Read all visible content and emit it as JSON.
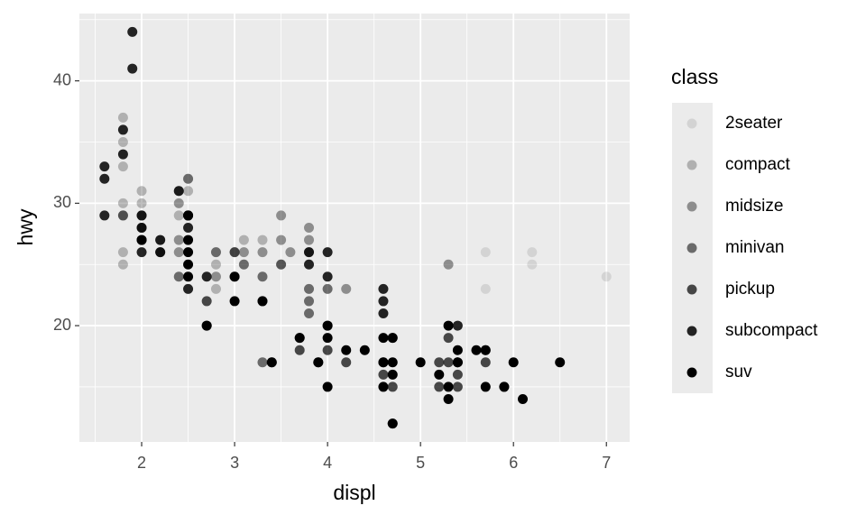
{
  "chart_data": {
    "type": "scatter",
    "x_label": "displ",
    "y_label": "hwy",
    "legend_title": "class",
    "legend_position": "right",
    "grid": true,
    "xlim": [
      1.33,
      7.25
    ],
    "ylim": [
      10.5,
      45.5
    ],
    "xticks": [
      2,
      3,
      4,
      5,
      6,
      7
    ],
    "yticks": [
      20,
      30,
      40
    ],
    "series": [
      {
        "name": "2seater",
        "color": "#0000001A",
        "x": [
          5.7,
          5.7,
          6.2,
          6.2,
          7.0
        ],
        "values": [
          26,
          23,
          26,
          25,
          24
        ]
      },
      {
        "name": "compact",
        "color": "#00000040",
        "x": [
          1.8,
          1.8,
          2.0,
          2.0,
          2.8,
          3.1,
          1.8,
          1.8,
          2.0,
          2.0,
          2.8,
          3.1,
          2.0,
          2.5,
          2.2,
          2.2,
          2.4,
          2.4,
          3.0,
          3.3,
          1.8,
          1.8,
          1.8,
          1.8,
          2.0,
          2.8,
          2.5,
          2.5
        ],
        "values": [
          29,
          29,
          31,
          30,
          26,
          27,
          26,
          25,
          28,
          27,
          25,
          25,
          29,
          29,
          26,
          27,
          31,
          29,
          26,
          27,
          30,
          33,
          35,
          37,
          29,
          23,
          32,
          31
        ]
      },
      {
        "name": "midsize",
        "color": "#00000066",
        "x": [
          2.8,
          3.1,
          4.2,
          2.4,
          2.4,
          3.1,
          3.5,
          3.6,
          2.4,
          2.5,
          3.3,
          2.5,
          3.5,
          3.5,
          3.0,
          3.5,
          3.8,
          3.8,
          3.8,
          5.3,
          2.2,
          3.0,
          1.8,
          2.0,
          2.8
        ],
        "values": [
          24,
          25,
          23,
          27,
          30,
          26,
          29,
          26,
          26,
          29,
          26,
          32,
          27,
          25,
          26,
          25,
          27,
          26,
          28,
          25,
          26,
          26,
          29,
          28,
          26
        ]
      },
      {
        "name": "minivan",
        "color": "#0000008C",
        "x": [
          2.4,
          3.0,
          3.3,
          3.3,
          3.3,
          3.8,
          3.8,
          3.8,
          4.0
        ],
        "values": [
          24,
          24,
          22,
          24,
          17,
          22,
          21,
          23,
          23
        ]
      },
      {
        "name": "pickup",
        "color": "#000000B3",
        "x": [
          3.7,
          3.7,
          3.9,
          4.7,
          4.7,
          5.2,
          5.2,
          4.7,
          5.7,
          5.9,
          4.2,
          4.6,
          4.6,
          5.4,
          5.4,
          2.7,
          2.7,
          3.4,
          4.0,
          4.0,
          5.3,
          5.3,
          5.7
        ],
        "values": [
          19,
          18,
          17,
          19,
          12,
          17,
          15,
          15,
          17,
          15,
          17,
          17,
          16,
          15,
          16,
          20,
          22,
          17,
          18,
          20,
          19,
          17,
          18
        ]
      },
      {
        "name": "subcompact",
        "color": "#000000D9",
        "x": [
          1.6,
          1.6,
          1.6,
          1.8,
          1.8,
          2.0,
          3.8,
          3.8,
          4.0,
          4.0,
          4.6,
          4.6,
          4.6,
          5.4,
          2.0,
          2.0,
          2.7,
          2.0,
          1.9,
          1.9,
          2.5,
          2.5,
          2.5,
          2.2,
          2.2,
          2.4
        ],
        "values": [
          33,
          32,
          29,
          34,
          36,
          29,
          26,
          25,
          26,
          24,
          21,
          22,
          23,
          20,
          26,
          28,
          24,
          27,
          44,
          41,
          29,
          28,
          23,
          26,
          27,
          31
        ]
      },
      {
        "name": "suv",
        "color": "#000000",
        "x": [
          2.7,
          4.0,
          3.4,
          4.7,
          5.7,
          5.3,
          5.3,
          6.0,
          5.3,
          5.7,
          6.5,
          3.9,
          4.7,
          5.2,
          5.9,
          4.6,
          5.4,
          5.4,
          4.0,
          5.0,
          3.7,
          6.1,
          4.0,
          4.2,
          4.4,
          4.6,
          3.3,
          5.6,
          2.5,
          2.5,
          2.5,
          2.5,
          2.0,
          3.0,
          3.0,
          2.5,
          4.7,
          4.6,
          5.4,
          4.7
        ],
        "values": [
          20,
          20,
          17,
          19,
          18,
          20,
          15,
          17,
          14,
          15,
          17,
          17,
          12,
          16,
          15,
          17,
          18,
          17,
          19,
          17,
          19,
          14,
          15,
          18,
          18,
          19,
          22,
          18,
          25,
          24,
          26,
          27,
          27,
          24,
          22,
          29,
          16,
          15,
          17,
          17
        ]
      }
    ]
  }
}
